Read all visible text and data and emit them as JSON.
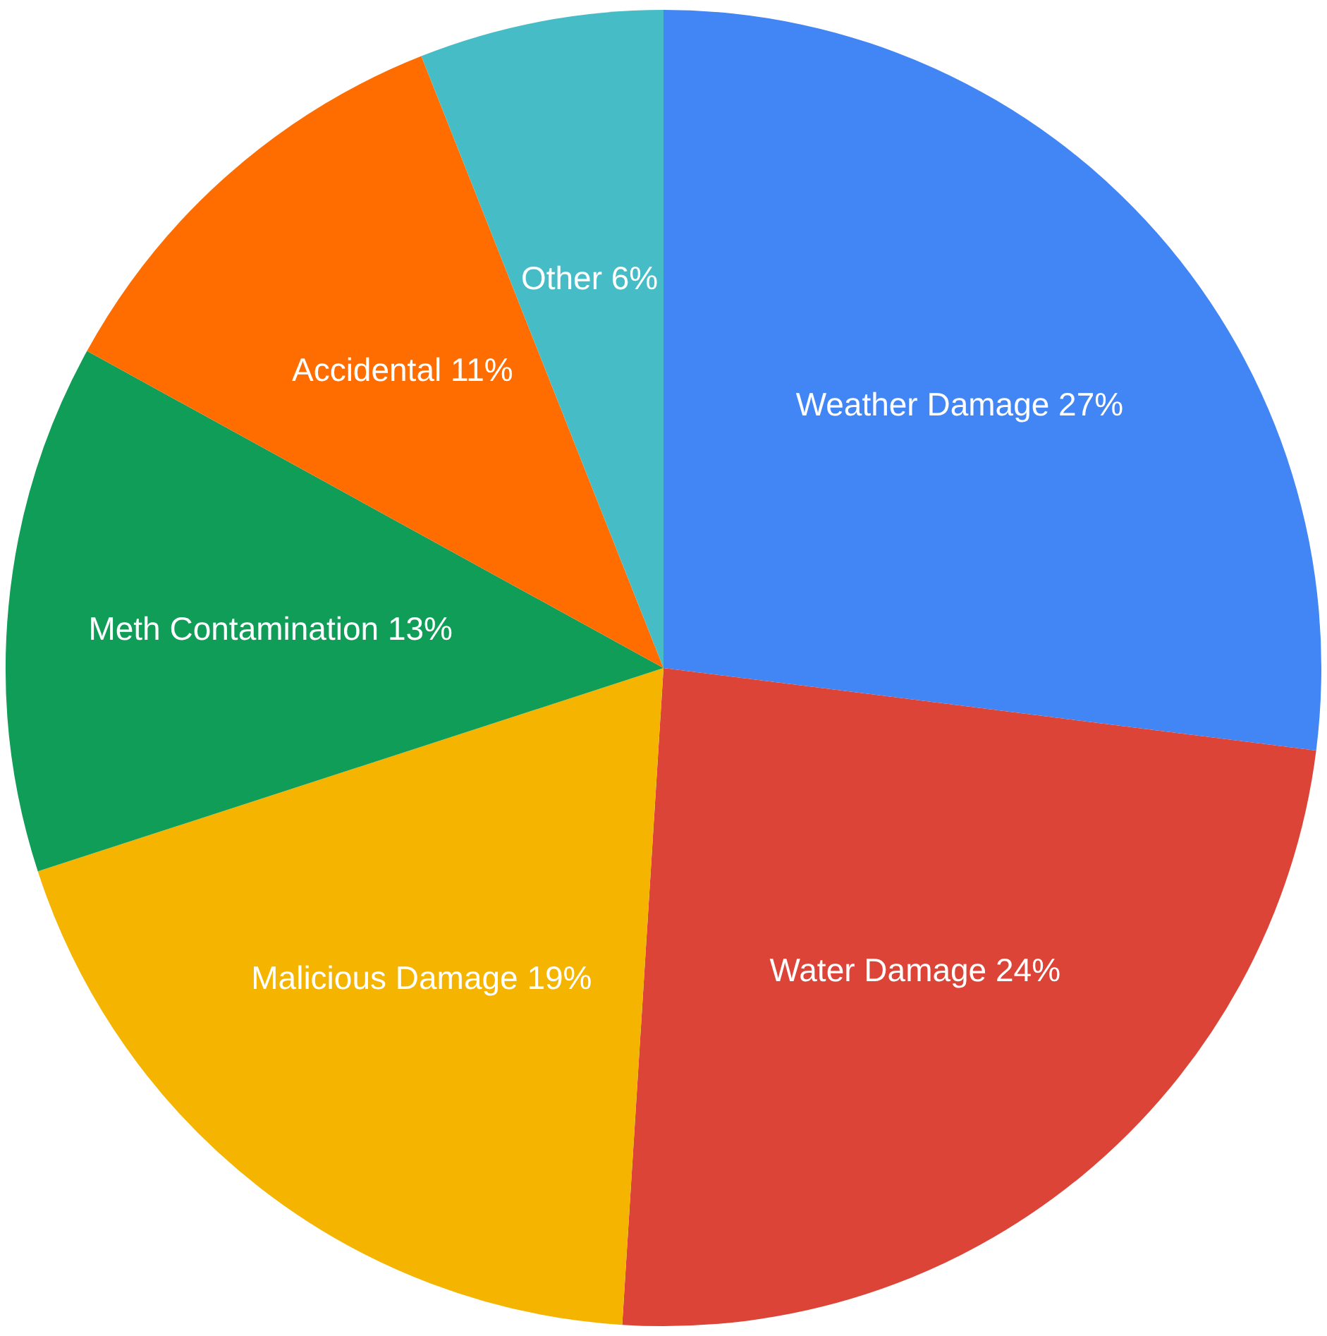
{
  "chart_data": {
    "type": "pie",
    "categories": [
      "Weather Damage",
      "Water Damage",
      "Malicious Damage",
      "Meth Contamination",
      "Accidental",
      "Other"
    ],
    "values": [
      27,
      24,
      19,
      13,
      11,
      6
    ],
    "colors": [
      "#4285f4",
      "#db4437",
      "#f4b400",
      "#0f9d58",
      "#ff6d00",
      "#46bdc6"
    ],
    "value_labels": [
      "27%",
      "24%",
      "19%",
      "13%",
      "11%",
      "6%"
    ],
    "legend": false
  }
}
